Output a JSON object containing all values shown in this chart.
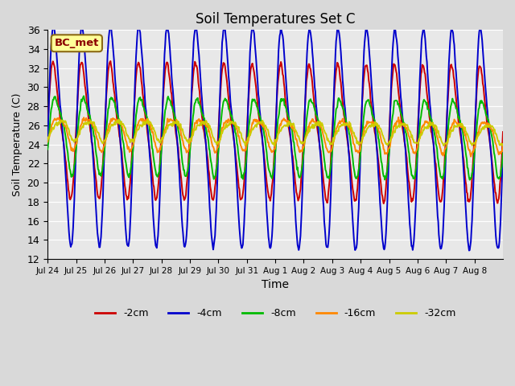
{
  "title": "Soil Temperatures Set C",
  "xlabel": "Time",
  "ylabel": "Soil Temperature (C)",
  "ylim": [
    12,
    36
  ],
  "yticks": [
    12,
    14,
    16,
    18,
    20,
    22,
    24,
    26,
    28,
    30,
    32,
    34,
    36
  ],
  "annotation": "BC_met",
  "fig_bg": "#d9d9d9",
  "ax_bg": "#e8e8e8",
  "lines": {
    "-2cm": {
      "color": "#cc0000",
      "lw": 1.4,
      "amplitude": 6.5,
      "phase_shift": 0.0,
      "base": 25.5
    },
    "-4cm": {
      "color": "#0000cc",
      "lw": 1.4,
      "amplitude": 10.5,
      "phase_shift": 0.12,
      "base": 25.2
    },
    "-8cm": {
      "color": "#00bb00",
      "lw": 1.4,
      "amplitude": 3.8,
      "phase_shift": 0.45,
      "base": 25.3
    },
    "-16cm": {
      "color": "#ff8800",
      "lw": 1.4,
      "amplitude": 1.6,
      "phase_shift": 0.85,
      "base": 25.4
    },
    "-32cm": {
      "color": "#cccc00",
      "lw": 1.4,
      "amplitude": 1.0,
      "phase_shift": 1.3,
      "base": 25.6
    }
  },
  "xtick_labels": [
    "Jul 24",
    "Jul 25",
    "Jul 26",
    "Jul 27",
    "Jul 28",
    "Jul 29",
    "Jul 30",
    "Jul 31",
    "Aug 1",
    "Aug 2",
    "Aug 3",
    "Aug 4",
    "Aug 5",
    "Aug 6",
    "Aug 7",
    "Aug 8"
  ],
  "legend_labels": [
    "-2cm",
    "-4cm",
    "-8cm",
    "-16cm",
    "-32cm"
  ],
  "legend_colors": [
    "#cc0000",
    "#0000cc",
    "#00bb00",
    "#ff8800",
    "#cccc00"
  ]
}
